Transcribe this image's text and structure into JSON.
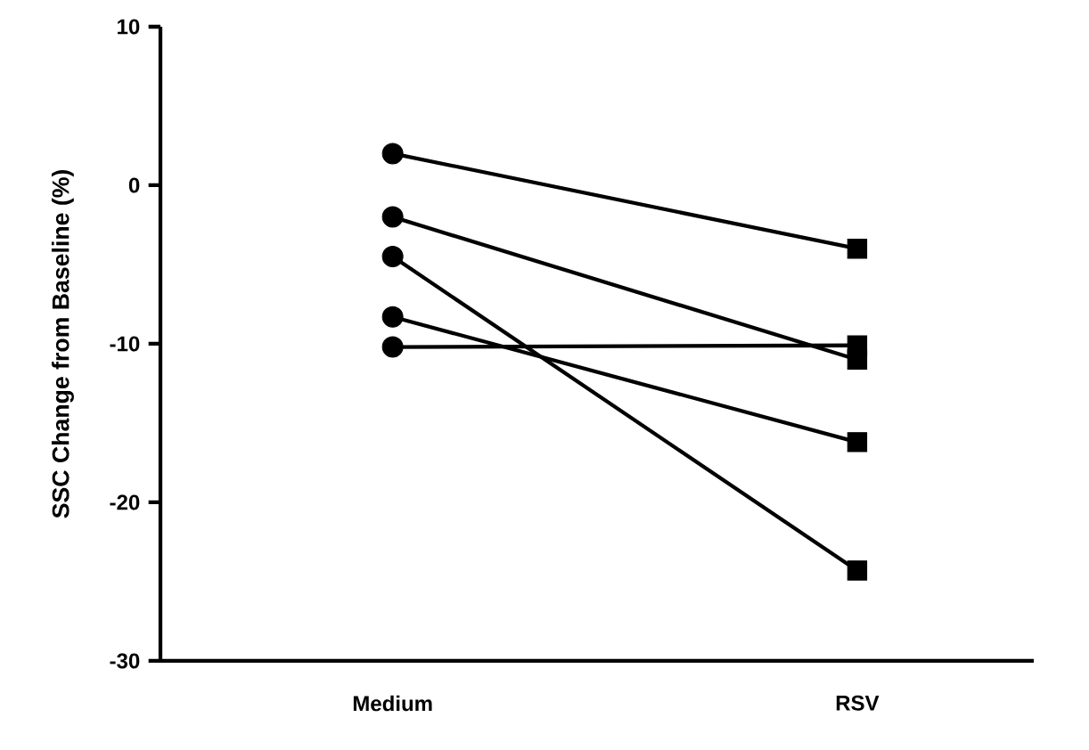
{
  "chart_data": {
    "type": "line",
    "ylabel": "SSC Change from Baseline (%)",
    "categories": [
      "Medium",
      "RSV"
    ],
    "ylim": [
      -30,
      10
    ],
    "yticks": [
      -30,
      -20,
      -10,
      0,
      10
    ],
    "series": [
      {
        "type": "line",
        "color": "#000000",
        "marker": "none",
        "values": [
          2,
          -4
        ]
      },
      {
        "type": "line",
        "color": "#000000",
        "marker": "none",
        "values": [
          -2,
          -11
        ]
      },
      {
        "type": "line",
        "color": "#000000",
        "marker": "none",
        "values": [
          -4.5,
          -24.3
        ]
      },
      {
        "type": "line",
        "color": "#000000",
        "marker": "none",
        "values": [
          -8.3,
          -16.2
        ]
      },
      {
        "type": "line",
        "color": "#000000",
        "marker": "none",
        "values": [
          -10.2,
          -10.1
        ]
      },
      {
        "type": "scatter",
        "color": "#000000",
        "marker": "circle",
        "x": [
          "Medium",
          "Medium",
          "Medium",
          "Medium",
          "Medium"
        ],
        "values": [
          2,
          -2,
          -4.5,
          -8.3,
          -10.2
        ]
      },
      {
        "type": "scatter",
        "color": "#000000",
        "marker": "square",
        "x": [
          "RSV",
          "RSV",
          "RSV",
          "RSV",
          "RSV"
        ],
        "values": [
          -4,
          -11,
          -24.3,
          -16.2,
          -10.1
        ]
      }
    ]
  }
}
